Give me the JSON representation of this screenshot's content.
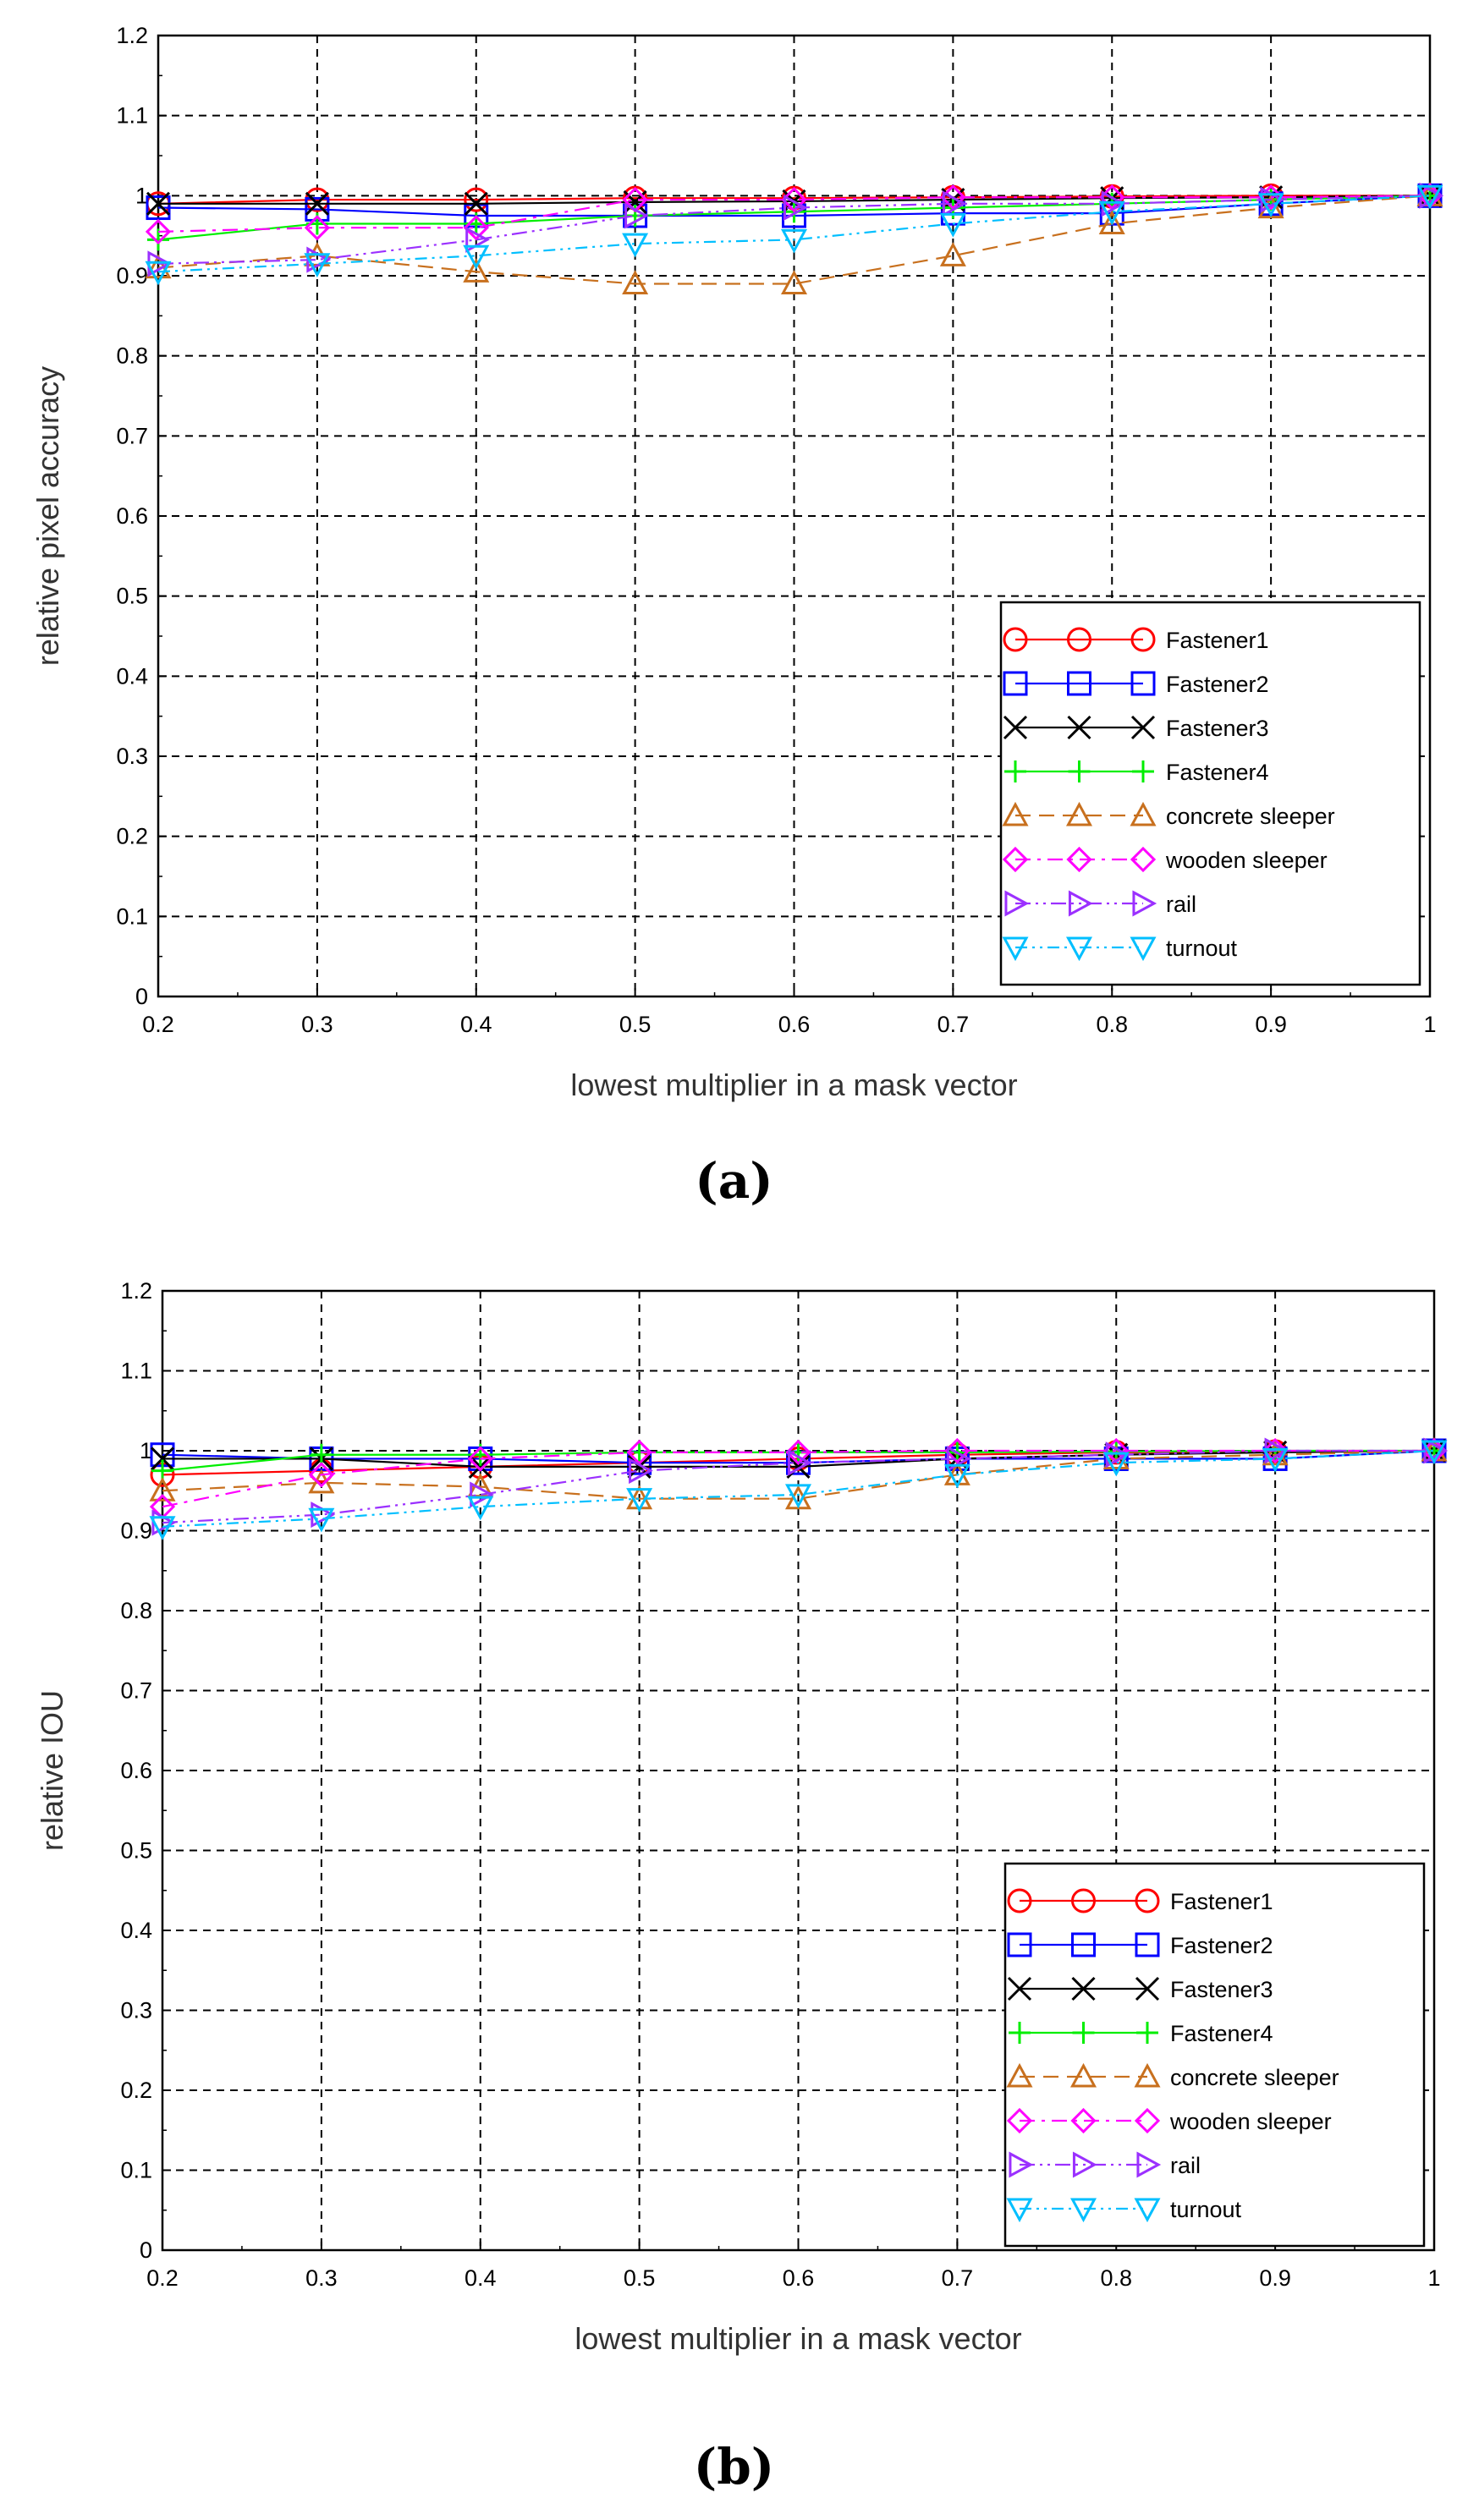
{
  "figure": {
    "panels": [
      "(a)",
      "(b)"
    ]
  },
  "legend": [
    {
      "name": "Fastener1",
      "color": "#ff0000",
      "marker": "circle",
      "dash": "solid"
    },
    {
      "name": "Fastener2",
      "color": "#0000ff",
      "marker": "square",
      "dash": "solid"
    },
    {
      "name": "Fastener3",
      "color": "#000000",
      "marker": "x",
      "dash": "solid"
    },
    {
      "name": "Fastener4",
      "color": "#00ee00",
      "marker": "plus",
      "dash": "solid"
    },
    {
      "name": "concrete sleeper",
      "color": "#c8701e",
      "marker": "triangle-up",
      "dash": "dashed"
    },
    {
      "name": "wooden sleeper",
      "color": "#ff00ff",
      "marker": "diamond",
      "dash": "dashdot"
    },
    {
      "name": "rail",
      "color": "#9b30ff",
      "marker": "triangle-right",
      "dash": "dashdotdot"
    },
    {
      "name": "turnout",
      "color": "#00bfff",
      "marker": "triangle-down",
      "dash": "dashdot2"
    }
  ],
  "chart_data": [
    {
      "type": "line",
      "panel": "a",
      "xlabel": "lowest multiplier in a mask vector",
      "ylabel": "relative pixel accuracy",
      "xlim": [
        0.2,
        1.0
      ],
      "ylim": [
        0,
        1.2
      ],
      "xticks": [
        0.2,
        0.3,
        0.4,
        0.5,
        0.6,
        0.7,
        0.8,
        0.9,
        1
      ],
      "yticks": [
        0,
        0.1,
        0.2,
        0.3,
        0.4,
        0.5,
        0.6,
        0.7,
        0.8,
        0.9,
        1,
        1.1,
        1.2
      ],
      "grid": true,
      "legend_position": "lower-right",
      "x": [
        0.2,
        0.3,
        0.4,
        0.5,
        0.6,
        0.7,
        0.8,
        0.9,
        1.0
      ],
      "series": [
        {
          "name": "Fastener1",
          "values": [
            0.99,
            0.995,
            0.995,
            0.997,
            0.997,
            0.998,
            0.999,
            1.0,
            1.0
          ]
        },
        {
          "name": "Fastener2",
          "values": [
            0.985,
            0.983,
            0.975,
            0.975,
            0.975,
            0.978,
            0.978,
            0.99,
            1.0
          ]
        },
        {
          "name": "Fastener3",
          "values": [
            0.99,
            0.99,
            0.99,
            0.992,
            0.993,
            0.995,
            0.997,
            0.998,
            1.0
          ]
        },
        {
          "name": "Fastener4",
          "values": [
            0.945,
            0.965,
            0.965,
            0.975,
            0.98,
            0.985,
            0.99,
            0.995,
            1.0
          ]
        },
        {
          "name": "concrete sleeper",
          "values": [
            0.91,
            0.925,
            0.905,
            0.89,
            0.89,
            0.925,
            0.965,
            0.985,
            1.0
          ]
        },
        {
          "name": "wooden sleeper",
          "values": [
            0.955,
            0.96,
            0.96,
            0.995,
            0.995,
            0.998,
            0.998,
            0.998,
            1.0
          ]
        },
        {
          "name": "rail",
          "values": [
            0.915,
            0.92,
            0.945,
            0.975,
            0.985,
            0.99,
            0.99,
            0.995,
            1.0
          ]
        },
        {
          "name": "turnout",
          "values": [
            0.905,
            0.915,
            0.925,
            0.94,
            0.945,
            0.965,
            0.98,
            0.99,
            1.0
          ]
        }
      ]
    },
    {
      "type": "line",
      "panel": "b",
      "xlabel": "lowest multiplier in a mask vector",
      "ylabel": "relative IOU",
      "xlim": [
        0.2,
        1.0
      ],
      "ylim": [
        0,
        1.2
      ],
      "xticks": [
        0.2,
        0.3,
        0.4,
        0.5,
        0.6,
        0.7,
        0.8,
        0.9,
        1
      ],
      "yticks": [
        0,
        0.1,
        0.2,
        0.3,
        0.4,
        0.5,
        0.6,
        0.7,
        0.8,
        0.9,
        1,
        1.1,
        1.2
      ],
      "grid": true,
      "legend_position": "lower-right",
      "x": [
        0.2,
        0.3,
        0.4,
        0.5,
        0.6,
        0.7,
        0.8,
        0.9,
        1.0
      ],
      "series": [
        {
          "name": "Fastener1",
          "values": [
            0.97,
            0.975,
            0.98,
            0.985,
            0.99,
            0.995,
            0.998,
            0.999,
            1.0
          ]
        },
        {
          "name": "Fastener2",
          "values": [
            0.995,
            0.99,
            0.99,
            0.985,
            0.985,
            0.99,
            0.99,
            0.99,
            1.0
          ]
        },
        {
          "name": "Fastener3",
          "values": [
            0.99,
            0.99,
            0.98,
            0.98,
            0.98,
            0.99,
            0.995,
            0.998,
            1.0
          ]
        },
        {
          "name": "Fastener4",
          "values": [
            0.975,
            0.995,
            0.995,
            0.998,
            0.998,
            0.998,
            0.999,
            1.0,
            1.0
          ]
        },
        {
          "name": "concrete sleeper",
          "values": [
            0.95,
            0.96,
            0.955,
            0.94,
            0.94,
            0.97,
            0.99,
            0.995,
            1.0
          ]
        },
        {
          "name": "wooden sleeper",
          "values": [
            0.93,
            0.97,
            0.99,
            0.998,
            0.998,
            1.0,
            1.0,
            1.0,
            1.0
          ]
        },
        {
          "name": "rail",
          "values": [
            0.91,
            0.92,
            0.945,
            0.975,
            0.985,
            0.99,
            0.995,
            1.0,
            1.0
          ]
        },
        {
          "name": "turnout",
          "values": [
            0.905,
            0.915,
            0.93,
            0.94,
            0.945,
            0.97,
            0.985,
            0.99,
            1.0
          ]
        }
      ]
    }
  ]
}
